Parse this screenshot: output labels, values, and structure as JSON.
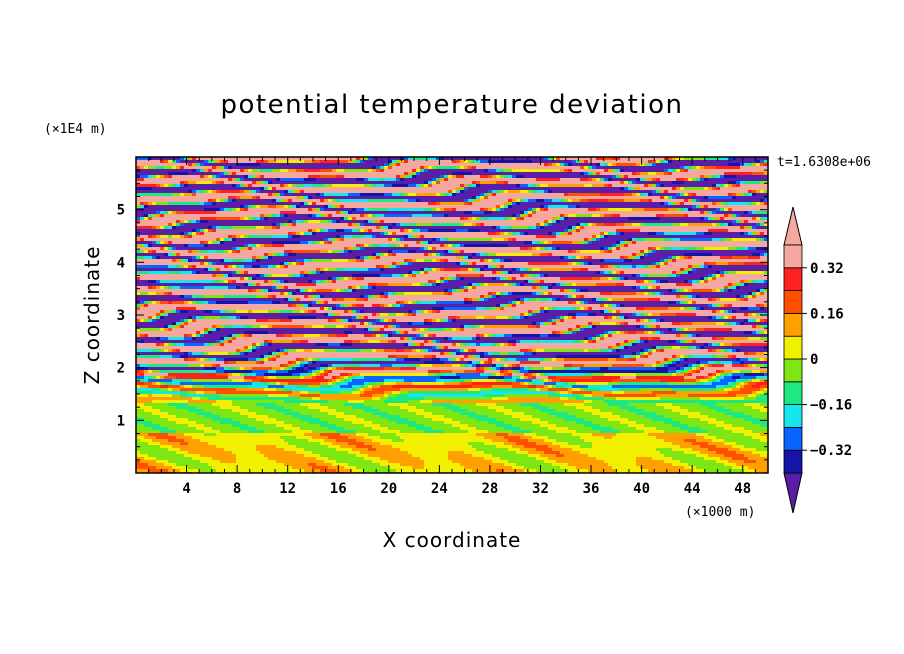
{
  "chart_data": {
    "type": "heatmap",
    "title": "potential temperature deviation",
    "xlabel": "X coordinate",
    "ylabel": "Z coordinate",
    "x_unit": "(×1000 m)",
    "y_unit": "(×1E4 m)",
    "time_label": "t=1.6308e+06",
    "xlim": [
      0,
      50
    ],
    "ylim": [
      0,
      6
    ],
    "x_ticks": [
      4,
      8,
      12,
      16,
      20,
      24,
      28,
      32,
      36,
      40,
      44,
      48
    ],
    "y_ticks": [
      1,
      2,
      3,
      4,
      5
    ],
    "colorbar": {
      "levels": [
        -0.4,
        -0.32,
        -0.24,
        -0.16,
        -0.08,
        0,
        0.08,
        0.16,
        0.24,
        0.32,
        0.4
      ],
      "labels": [
        "0.32",
        "0.16",
        "0",
        "−0.16",
        "−0.32"
      ],
      "label_values": [
        0.32,
        0.16,
        0,
        -0.16,
        -0.32
      ],
      "colors_low_to_high": [
        "#5a1ea8",
        "#1414a8",
        "#0a64ff",
        "#16e6ee",
        "#1ee882",
        "#7ee612",
        "#f0f000",
        "#ffa000",
        "#ff5000",
        "#ff2020",
        "#f4a8a0"
      ],
      "extend": "both"
    }
  }
}
